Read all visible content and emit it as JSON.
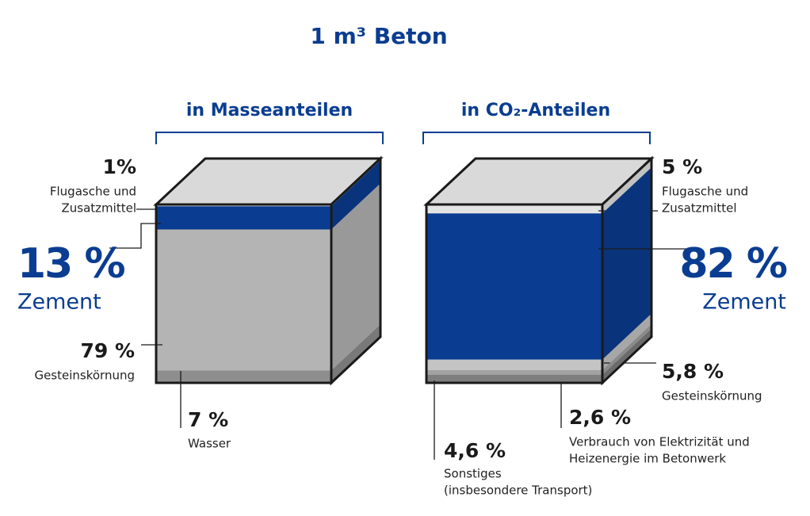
{
  "title": "1 m³ Beton",
  "panels": [
    {
      "heading": "in Masseanteilen",
      "layers": [
        {
          "value": 1,
          "label": "1%",
          "name_lines": [
            "Flugasche und",
            "Zusatzmittel"
          ],
          "color": "#e4e4e4"
        },
        {
          "value": 13,
          "label": "13 %",
          "name_lines": [
            "Zement"
          ],
          "color": "#0a3d91"
        },
        {
          "value": 79,
          "label": "79 %",
          "name_lines": [
            "Gesteinskörnung"
          ],
          "color": "#b4b4b4"
        },
        {
          "value": 7,
          "label": "7 %",
          "name_lines": [
            "Wasser"
          ],
          "color": "#8e8e8e"
        }
      ]
    },
    {
      "heading": "in CO₂-Anteilen",
      "layers": [
        {
          "value": 5,
          "label": "5 %",
          "name_lines": [
            "Flugasche und",
            "Zusatzmittel"
          ],
          "color": "#e4e4e4"
        },
        {
          "value": 82,
          "label": "82 %",
          "name_lines": [
            "Zement"
          ],
          "color": "#0a3d91"
        },
        {
          "value": 5.8,
          "label": "5,8 %",
          "name_lines": [
            "Gesteinskörnung"
          ],
          "color": "#c4c4c4"
        },
        {
          "value": 2.6,
          "label": "2,6 %",
          "name_lines": [
            "Verbrauch von Elektrizität und",
            "Heizenergie im Betonwerk"
          ],
          "color": "#a2a2a2"
        },
        {
          "value": 4.6,
          "label": "4,6 %",
          "name_lines": [
            "Sonstiges",
            "(insbesondere Transport)"
          ],
          "color": "#7e7e7e"
        }
      ]
    }
  ]
}
